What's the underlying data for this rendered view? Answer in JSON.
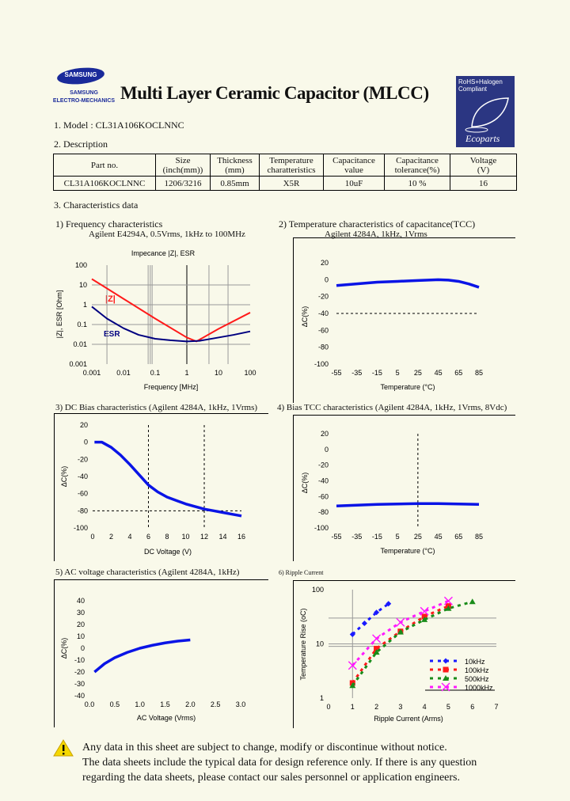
{
  "header": {
    "logo_text": "SAMSUNG",
    "logo_subtext_1": "SAMSUNG",
    "logo_subtext_2": "ELECTRO-MECHANICS",
    "title": "Multi Layer Ceramic Capacitor (MLCC)",
    "badge_line_1": "RoHS+Halogen",
    "badge_line_2": "Compliant",
    "badge_brand": "Ecoparts",
    "brand_color": "#2b3682"
  },
  "model": "1. Model : CL31A106KOCLNNC",
  "description_heading": "2. Description",
  "table": {
    "headers": [
      [
        "Part no.",
        ""
      ],
      [
        "Size",
        "(inch(mm))"
      ],
      [
        "Thickness",
        "(mm)"
      ],
      [
        "Temperature",
        "charatteristics"
      ],
      [
        "Capacitance",
        "value"
      ],
      [
        "Capacitance",
        "tolerance(%)"
      ],
      [
        "Voltage",
        "(V)"
      ]
    ],
    "row": [
      "CL31A106KOCLNNC",
      "1206/3216",
      "0.85mm",
      "X5R",
      "10uF",
      "10 %",
      "16"
    ]
  },
  "characteristics_heading": "3. Characteristics data",
  "chart_data": [
    {
      "type": "line",
      "heading": "1) Frequency characteristics",
      "subtitle": "Agilent E4294A, 0.5Vrms, 1kHz to 100MHz",
      "title": "Impecance |Z|,  ESR",
      "xlabel": "Frequency [MHz]",
      "ylabel": "|Z|, ESR [Ohm]",
      "x_scale": "log",
      "y_scale": "log",
      "xlim": [
        0.001,
        100
      ],
      "ylim": [
        0.001,
        100
      ],
      "x_ticks": [
        [
          0.001,
          "0.001"
        ],
        [
          0.01,
          "0.01"
        ],
        [
          0.1,
          "0.1"
        ],
        [
          1,
          "1"
        ],
        [
          10,
          "10"
        ],
        [
          100,
          "100"
        ]
      ],
      "y_ticks": [
        [
          100,
          "100"
        ],
        [
          10,
          "10"
        ],
        [
          1,
          "1"
        ],
        [
          0.1,
          "0.1"
        ],
        [
          0.01,
          "0.01"
        ],
        [
          0.001,
          "0.001"
        ]
      ],
      "grid": true,
      "series": [
        {
          "name": "|Z|",
          "color": "#ff1a1a",
          "points": [
            [
              0.001,
              20
            ],
            [
              0.01,
              2
            ],
            [
              0.1,
              0.2
            ],
            [
              1,
              0.022
            ],
            [
              2,
              0.014
            ],
            [
              10,
              0.06
            ],
            [
              100,
              0.4
            ]
          ]
        },
        {
          "name": "ESR",
          "color": "#000080",
          "points": [
            [
              0.001,
              0.8
            ],
            [
              0.003,
              0.2
            ],
            [
              0.01,
              0.065
            ],
            [
              0.03,
              0.03
            ],
            [
              0.1,
              0.019
            ],
            [
              0.3,
              0.016
            ],
            [
              1,
              0.014
            ],
            [
              2.5,
              0.015
            ],
            [
              10,
              0.022
            ],
            [
              30,
              0.03
            ],
            [
              100,
              0.045
            ]
          ]
        }
      ]
    },
    {
      "type": "line",
      "heading": "2) Temperature characteristics of capacitance(TCC)",
      "subtitle": "Agilent 4284A, 1kHz, 1Vrms",
      "xlabel": "Temperature (°C)",
      "ylabel": "ΔC(%)",
      "xlim": [
        -55,
        85
      ],
      "ylim": [
        -100,
        20
      ],
      "x_ticks": [
        [
          -55,
          "-55"
        ],
        [
          -35,
          "-35"
        ],
        [
          -15,
          "-15"
        ],
        [
          5,
          "5"
        ],
        [
          25,
          "25"
        ],
        [
          45,
          "45"
        ],
        [
          65,
          "65"
        ],
        [
          85,
          "85"
        ]
      ],
      "y_ticks": [
        [
          20,
          "20"
        ],
        [
          0,
          "0"
        ],
        [
          -20,
          "-20"
        ],
        [
          -40,
          "-40"
        ],
        [
          -60,
          "-60"
        ],
        [
          -80,
          "-80"
        ],
        [
          -100,
          "-100"
        ]
      ],
      "reference_lines": [
        {
          "axis": "y",
          "value": -40
        }
      ],
      "series": [
        {
          "color": "#0a14e6",
          "points": [
            [
              -55,
              -7
            ],
            [
              -35,
              -5
            ],
            [
              -15,
              -3
            ],
            [
              5,
              -2
            ],
            [
              25,
              -1
            ],
            [
              45,
              0
            ],
            [
              55,
              -0.5
            ],
            [
              65,
              -2
            ],
            [
              75,
              -5
            ],
            [
              85,
              -9
            ]
          ]
        }
      ]
    },
    {
      "type": "line",
      "heading": "3) DC Bias characteristics (Agilent 4284A, 1kHz, 1Vrms)",
      "xlabel": "DC Voltage (V)",
      "ylabel": "ΔC(%)",
      "xlim": [
        0,
        16
      ],
      "ylim": [
        -100,
        20
      ],
      "x_ticks": [
        [
          0,
          "0"
        ],
        [
          2,
          "2"
        ],
        [
          4,
          "4"
        ],
        [
          6,
          "6"
        ],
        [
          8,
          "8"
        ],
        [
          10,
          "10"
        ],
        [
          12,
          "12"
        ],
        [
          14,
          "14"
        ],
        [
          16,
          "16"
        ]
      ],
      "y_ticks": [
        [
          20,
          "20"
        ],
        [
          0,
          "0"
        ],
        [
          -20,
          "-20"
        ],
        [
          -40,
          "-40"
        ],
        [
          -60,
          "-60"
        ],
        [
          -80,
          "-80"
        ],
        [
          -100,
          "-100"
        ]
      ],
      "reference_lines": [
        {
          "axis": "x",
          "value": 6
        },
        {
          "axis": "x",
          "value": 12
        },
        {
          "axis": "y",
          "value": -80
        }
      ],
      "series": [
        {
          "color": "#0a14e6",
          "points": [
            [
              0.2,
              0
            ],
            [
              1,
              0
            ],
            [
              2,
              -6
            ],
            [
              3,
              -15
            ],
            [
              4,
              -26
            ],
            [
              5,
              -38
            ],
            [
              6,
              -50
            ],
            [
              7,
              -58
            ],
            [
              8,
              -64
            ],
            [
              9,
              -68
            ],
            [
              10,
              -72
            ],
            [
              11,
              -75
            ],
            [
              12,
              -78
            ],
            [
              13,
              -80
            ],
            [
              14,
              -82
            ],
            [
              15,
              -84
            ],
            [
              16,
              -86
            ]
          ]
        }
      ]
    },
    {
      "type": "line",
      "heading": "4) Bias TCC characteristics (Agilent 4284A, 1kHz, 1Vrms, 8Vdc)",
      "xlabel": "Temperature (°C)",
      "ylabel": "ΔC(%)",
      "xlim": [
        -55,
        85
      ],
      "ylim": [
        -100,
        20
      ],
      "x_ticks": [
        [
          -55,
          "-55"
        ],
        [
          -35,
          "-35"
        ],
        [
          -15,
          "-15"
        ],
        [
          5,
          "5"
        ],
        [
          25,
          "25"
        ],
        [
          45,
          "45"
        ],
        [
          65,
          "65"
        ],
        [
          85,
          "85"
        ]
      ],
      "y_ticks": [
        [
          20,
          "20"
        ],
        [
          0,
          "0"
        ],
        [
          -20,
          "-20"
        ],
        [
          -40,
          "-40"
        ],
        [
          -60,
          "-60"
        ],
        [
          -80,
          "-80"
        ],
        [
          -100,
          "-100"
        ]
      ],
      "reference_lines": [
        {
          "axis": "x",
          "value": 25
        }
      ],
      "series": [
        {
          "color": "#0a14e6",
          "points": [
            [
              -55,
              -72
            ],
            [
              -35,
              -71
            ],
            [
              -15,
              -70
            ],
            [
              5,
              -69.5
            ],
            [
              25,
              -69
            ],
            [
              45,
              -69
            ],
            [
              65,
              -69.5
            ],
            [
              85,
              -70
            ]
          ]
        }
      ]
    },
    {
      "type": "line",
      "heading": "5) AC voltage characteristics (Agilent 4284A, 1kHz)",
      "xlabel": "AC Voltage (Vrms)",
      "ylabel": "ΔC(%)",
      "xlim": [
        0,
        3.0
      ],
      "ylim": [
        -40,
        40
      ],
      "x_ticks": [
        [
          0,
          "0.0"
        ],
        [
          0.5,
          "0.5"
        ],
        [
          1,
          "1.0"
        ],
        [
          1.5,
          "1.5"
        ],
        [
          2,
          "2.0"
        ],
        [
          2.5,
          "2.5"
        ],
        [
          3,
          "3.0"
        ]
      ],
      "y_ticks": [
        [
          40,
          "40"
        ],
        [
          30,
          "30"
        ],
        [
          20,
          "20"
        ],
        [
          10,
          "10"
        ],
        [
          0,
          "0"
        ],
        [
          -10,
          "-10"
        ],
        [
          -20,
          "-20"
        ],
        [
          -30,
          "-30"
        ],
        [
          -40,
          "-40"
        ]
      ],
      "series": [
        {
          "color": "#0a14e6",
          "points": [
            [
              0.1,
              -20
            ],
            [
              0.3,
              -13
            ],
            [
              0.5,
              -8
            ],
            [
              0.75,
              -3.5
            ],
            [
              1.0,
              0
            ],
            [
              1.25,
              2.5
            ],
            [
              1.5,
              4.5
            ],
            [
              1.75,
              6
            ],
            [
              2.0,
              7
            ]
          ]
        }
      ]
    },
    {
      "type": "line",
      "heading": "6) Ripple Current",
      "xlabel": "Ripple Current (Arms)",
      "ylabel": "Temperature Rise (oC)",
      "xlim": [
        0,
        7
      ],
      "ylim": [
        1,
        100
      ],
      "y_scale": "log",
      "x_ticks": [
        [
          0,
          "0"
        ],
        [
          1,
          "1"
        ],
        [
          2,
          "2"
        ],
        [
          3,
          "3"
        ],
        [
          4,
          "4"
        ],
        [
          5,
          "5"
        ],
        [
          6,
          "6"
        ],
        [
          7,
          "7"
        ]
      ],
      "y_ticks": [
        [
          100,
          "100"
        ],
        [
          10,
          "10"
        ],
        [
          1,
          "1"
        ]
      ],
      "legend": "inside-bottom-right",
      "series": [
        {
          "name": "10kHz",
          "color": "#1a1aff",
          "marker": "diamond",
          "points": [
            [
              1,
              15
            ],
            [
              1.5,
              24
            ],
            [
              2,
              38
            ],
            [
              2.5,
              55
            ]
          ]
        },
        {
          "name": "100kHz",
          "color": "#ff1a1a",
          "marker": "square",
          "points": [
            [
              1,
              1.9
            ],
            [
              2,
              8.2
            ],
            [
              3,
              17
            ],
            [
              4,
              32
            ],
            [
              5,
              50
            ]
          ]
        },
        {
          "name": "500kHz",
          "color": "#1a8c1a",
          "marker": "triangle",
          "points": [
            [
              1,
              1.7
            ],
            [
              2,
              7
            ],
            [
              3,
              16.5
            ],
            [
              4,
              28
            ],
            [
              5,
              45
            ],
            [
              6,
              60
            ]
          ]
        },
        {
          "name": "1000kHz",
          "color": "#ff1aff",
          "marker": "x",
          "points": [
            [
              1,
              4
            ],
            [
              2,
              12.5
            ],
            [
              3,
              25
            ],
            [
              4,
              40
            ],
            [
              5,
              62
            ]
          ]
        }
      ]
    }
  ],
  "notice": {
    "icon": "warning-icon",
    "lines": [
      "Any data in this sheet are subject to change, modify or discontinue without notice.",
      "The data sheets include the typical data for design reference only. If there is any question",
      "regarding the data sheets, please contact our sales personnel or application engineers."
    ]
  }
}
